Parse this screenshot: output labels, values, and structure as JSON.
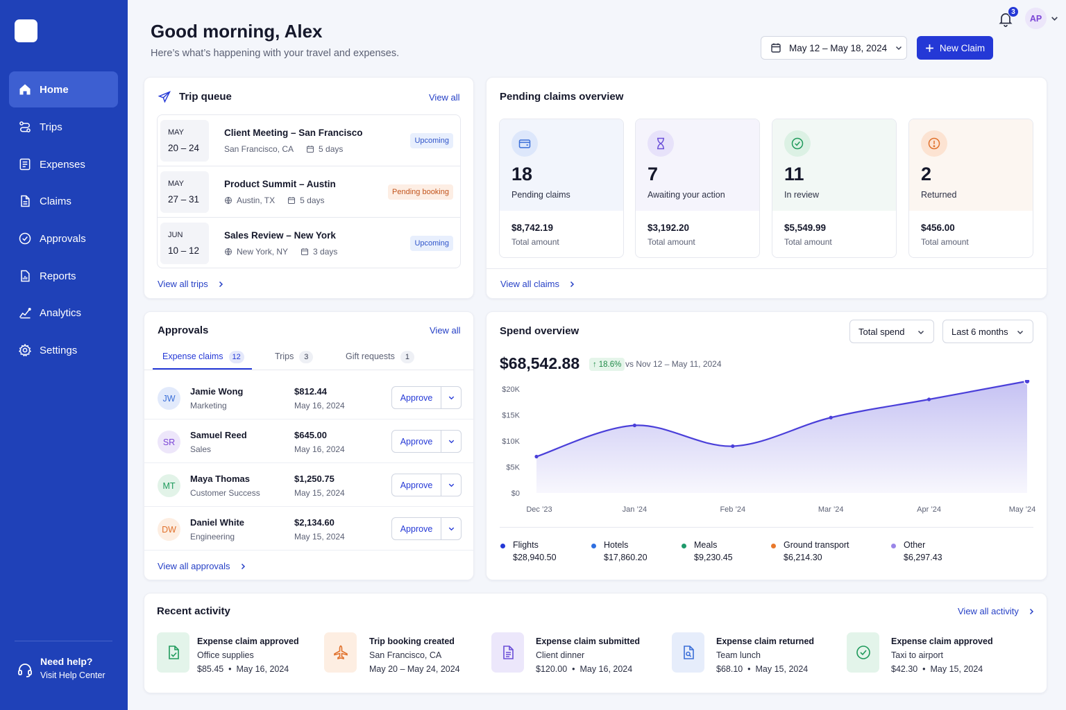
{
  "nav": {
    "items": [
      {
        "label": "Home",
        "icon": "home-icon",
        "active": true
      },
      {
        "label": "Trips",
        "icon": "route-icon"
      },
      {
        "label": "Expenses",
        "icon": "receipt-icon"
      },
      {
        "label": "Claims",
        "icon": "document-icon"
      },
      {
        "label": "Approvals",
        "icon": "check-circle-icon"
      },
      {
        "label": "Reports",
        "icon": "report-icon"
      },
      {
        "label": "Analytics",
        "icon": "analytics-icon"
      },
      {
        "label": "Settings",
        "icon": "gear-icon"
      }
    ],
    "help_title": "Need help?",
    "help_link": "Visit Help Center"
  },
  "header": {
    "greeting": "Good morning, Alex",
    "subtitle": "Here’s what’s happening with your travel and expenses.",
    "notification_count": "3",
    "user_initials": "AP",
    "date_range": "May 12 – May 18, 2024",
    "new_claim_label": "New Claim"
  },
  "trip_queue": {
    "title": "Trip queue",
    "view_all": "View all",
    "view_all_trips": "View all trips",
    "trips": [
      {
        "month": "MAY",
        "days": "20 – 24",
        "name": "Client Meeting – San Francisco",
        "location": "San Francisco, CA",
        "duration": "5 days",
        "status": "Upcoming"
      },
      {
        "month": "MAY",
        "days": "27 – 31",
        "name": "Product Summit – Austin",
        "location": "Austin, TX",
        "duration": "5 days",
        "status": "Pending booking"
      },
      {
        "month": "JUN",
        "days": "10 – 12",
        "name": "Sales Review – New York",
        "location": "New York, NY",
        "duration": "3 days",
        "status": "Upcoming"
      }
    ]
  },
  "pending_claims": {
    "title": "Pending claims overview",
    "view_all_claims": "View all claims",
    "stats": [
      {
        "count": "18",
        "label": "Pending claims",
        "amount": "$8,742.19",
        "amount_label": "Total amount",
        "icon": "wallet-icon",
        "color": "#3b6fd8"
      },
      {
        "count": "7",
        "label": "Awaiting your action",
        "amount": "$3,192.20",
        "amount_label": "Total amount",
        "icon": "hourglass-icon",
        "color": "#6b4fd8"
      },
      {
        "count": "11",
        "label": "In review",
        "amount": "$5,549.99",
        "amount_label": "Total amount",
        "icon": "check-circle-icon",
        "color": "#1f9a5b"
      },
      {
        "count": "2",
        "label": "Returned",
        "amount": "$456.00",
        "amount_label": "Total amount",
        "icon": "alert-circle-icon",
        "color": "#e0712c"
      }
    ]
  },
  "approvals": {
    "title": "Approvals",
    "view_all": "View all",
    "view_all_approvals": "View all approvals",
    "tabs": [
      {
        "label": "Expense claims",
        "count": "12"
      },
      {
        "label": "Trips",
        "count": "3"
      },
      {
        "label": "Gift requests",
        "count": "1"
      }
    ],
    "approve_label": "Approve",
    "rows": [
      {
        "initials": "JW",
        "name": "Jamie Wong",
        "dept": "Marketing",
        "amount": "$812.44",
        "date": "May 16, 2024"
      },
      {
        "initials": "SR",
        "name": "Samuel Reed",
        "dept": "Sales",
        "amount": "$645.00",
        "date": "May 16, 2024"
      },
      {
        "initials": "MT",
        "name": "Maya Thomas",
        "dept": "Customer Success",
        "amount": "$1,250.75",
        "date": "May 15, 2024"
      },
      {
        "initials": "DW",
        "name": "Daniel White",
        "dept": "Engineering",
        "amount": "$2,134.60",
        "date": "May 15, 2024"
      }
    ]
  },
  "spend": {
    "title": "Spend overview",
    "metric_select": "Total spend",
    "period_select": "Last 6 months",
    "total": "$68,542.88",
    "change": "18.6%",
    "compare_text": "vs Nov 12 – May 11, 2024",
    "legend": [
      {
        "name": "Flights",
        "value": "$28,940.50",
        "color": "#2438d6"
      },
      {
        "name": "Hotels",
        "value": "$17,860.20",
        "color": "#2f6fe0"
      },
      {
        "name": "Meals",
        "value": "$9,230.45",
        "color": "#1f9a6b"
      },
      {
        "name": "Ground transport",
        "value": "$6,214.30",
        "color": "#e9782b"
      },
      {
        "name": "Other",
        "value": "$6,297.43",
        "color": "#9a86e8"
      }
    ]
  },
  "chart_data": {
    "type": "area",
    "categories": [
      "Dec ’23",
      "Jan ’24",
      "Feb ’24",
      "Mar ’24",
      "Apr ’24",
      "May ’24"
    ],
    "series": [
      {
        "values": [
          7000,
          13000,
          9000,
          14500,
          18000,
          21500
        ]
      }
    ],
    "y_ticks": [
      "$0",
      "$5K",
      "$10K",
      "$15K",
      "$20K"
    ],
    "ylim": [
      0,
      20000
    ],
    "color": "#4a3fd9"
  },
  "activity": {
    "title": "Recent activity",
    "view_all": "View all activity",
    "items": [
      {
        "title": "Expense claim approved",
        "subtitle": "Office supplies",
        "amount": "$85.45",
        "date": "May 16, 2024",
        "icon": "document-check-icon",
        "bg": "#e3f4ea",
        "color": "#1f9a5b"
      },
      {
        "title": "Trip booking created",
        "subtitle": "San Francisco, CA",
        "meta": "May 20 – May 24, 2024",
        "icon": "airplane-icon",
        "bg": "#fdeee2",
        "color": "#e0712c"
      },
      {
        "title": "Expense claim submitted",
        "subtitle": "Client dinner",
        "amount": "$120.00",
        "date": "May 16, 2024",
        "icon": "document-icon",
        "bg": "#ece7fb",
        "color": "#6b4fd8"
      },
      {
        "title": "Expense claim returned",
        "subtitle": "Team lunch",
        "amount": "$68.10",
        "date": "May 15, 2024",
        "icon": "document-search-icon",
        "bg": "#e6edfb",
        "color": "#3b6fd8"
      },
      {
        "title": "Expense claim approved",
        "subtitle": "Taxi to airport",
        "amount": "$42.30",
        "date": "May 15, 2024",
        "icon": "check-circle-icon",
        "bg": "#e3f4ea",
        "color": "#1f9a5b"
      }
    ]
  }
}
